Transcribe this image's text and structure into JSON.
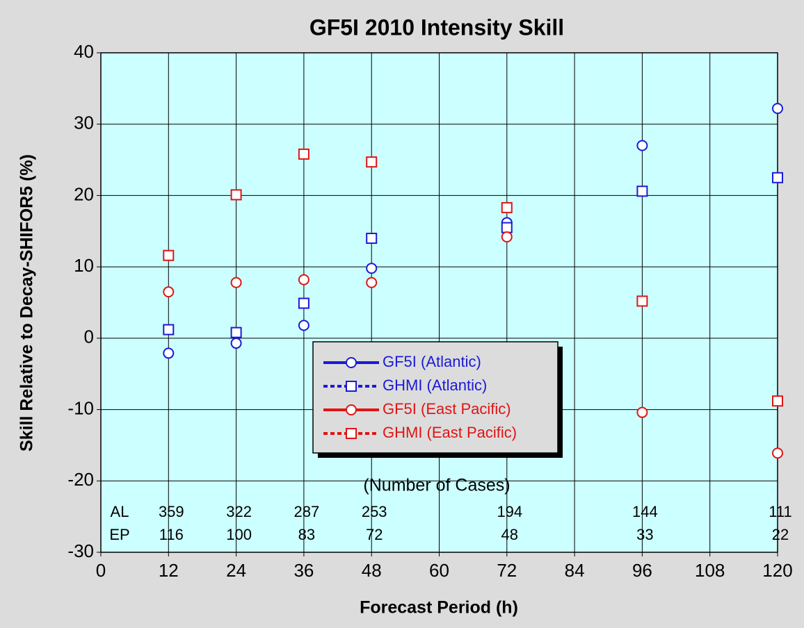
{
  "chart_data": {
    "type": "line",
    "title": "GF5I 2010 Intensity Skill",
    "x_label": "Forecast Period (h)",
    "y_label": "Skill Relative to Decay-SHIFOR5 (%)",
    "x": [
      12,
      24,
      36,
      48,
      72,
      96,
      120
    ],
    "series": [
      {
        "name": "GF5I (Atlantic)",
        "color": "#1a1ad8",
        "dash": false,
        "marker": "circle",
        "values": [
          -2.1,
          -0.7,
          1.8,
          9.8,
          16.2,
          27,
          32.2
        ]
      },
      {
        "name": "GHMI (Atlantic)",
        "color": "#1a1ad8",
        "dash": true,
        "marker": "square",
        "values": [
          1.2,
          0.8,
          4.9,
          14,
          15.5,
          20.6,
          22.5
        ]
      },
      {
        "name": "GF5I (East Pacific)",
        "color": "#e01414",
        "dash": false,
        "marker": "circle",
        "values": [
          6.5,
          7.8,
          8.2,
          7.8,
          14.2,
          -10.4,
          -16.1
        ]
      },
      {
        "name": "GHMI (East Pacific)",
        "color": "#e01414",
        "dash": true,
        "marker": "square",
        "values": [
          11.6,
          20.1,
          25.8,
          24.7,
          18.3,
          5.2,
          -8.8
        ]
      }
    ],
    "xlim": [
      0,
      120
    ],
    "ylim": [
      -30,
      40
    ],
    "xticks": [
      0,
      12,
      24,
      36,
      48,
      60,
      72,
      84,
      96,
      108,
      120
    ],
    "yticks": [
      -30,
      -20,
      -10,
      0,
      10,
      20,
      30,
      40
    ],
    "grid": true,
    "plot_background": "#ccffff",
    "legend": "center",
    "cases": {
      "title": "(Number of Cases)",
      "rows": [
        {
          "label": "AL",
          "values": [
            359,
            322,
            287,
            253,
            194,
            144,
            111
          ]
        },
        {
          "label": "EP",
          "values": [
            116,
            100,
            83,
            72,
            48,
            33,
            22
          ]
        }
      ]
    }
  }
}
